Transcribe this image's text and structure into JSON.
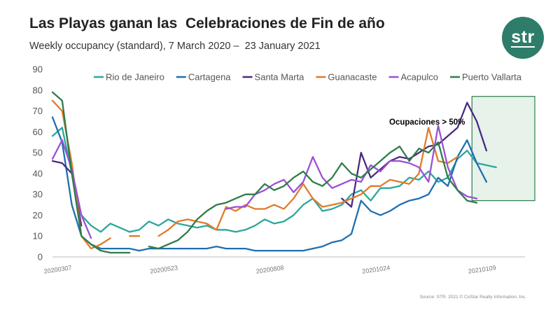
{
  "header": {
    "title": "Las Playas ganan las  Celebraciones de Fin de año",
    "subtitle": "Weekly occupancy (standard), 7 March 2020 –  23 January 2021",
    "logo_text": "str"
  },
  "footer": {
    "source": "Source: STR. 2021 © CoStar Realty Information, Inc."
  },
  "colors": {
    "Rio de Janeiro": "#2aa89a",
    "Cartagena": "#1f6fb0",
    "Santa Marta": "#4b2a82",
    "Guanacaste": "#e07b2a",
    "Acapulco": "#9b4fd6",
    "Puerto Vallarta": "#2e7d4a",
    "highlight_fill": "#e6f2ea",
    "highlight_stroke": "#2e7d4a",
    "logo": "#2e7d6b"
  },
  "chart_data": {
    "type": "line",
    "title": "Las Playas ganan las  Celebraciones de Fin de año",
    "xlabel": "",
    "ylabel": "",
    "ylim": [
      0,
      90
    ],
    "yticks": [
      0,
      10,
      20,
      30,
      40,
      50,
      60,
      70,
      80,
      90
    ],
    "grid": false,
    "legend_position": "top",
    "x_tick_labels": [
      "20200307",
      "20200523",
      "20200808",
      "20201024",
      "20210109"
    ],
    "x_tick_positions": [
      1,
      12,
      23,
      34,
      45
    ],
    "x": [
      1,
      2,
      3,
      4,
      5,
      6,
      7,
      8,
      9,
      10,
      11,
      12,
      13,
      14,
      15,
      16,
      17,
      18,
      19,
      20,
      21,
      22,
      23,
      24,
      25,
      26,
      27,
      28,
      29,
      30,
      31,
      32,
      33,
      34,
      35,
      36,
      37,
      38,
      39,
      40,
      41,
      42,
      43,
      44,
      45,
      46,
      47,
      48,
      49,
      50
    ],
    "annotation": {
      "text": "Ocupaciones >  50%",
      "x_start": 44.5,
      "x_end": 50,
      "y_low": 27,
      "y_high": 77
    },
    "series": [
      {
        "name": "Rio de Janeiro",
        "values": [
          58,
          62,
          40,
          20,
          15,
          12,
          16,
          14,
          12,
          13,
          17,
          15,
          18,
          16,
          15,
          14,
          15,
          13,
          13,
          12,
          13,
          15,
          18,
          16,
          17,
          20,
          25,
          28,
          22,
          23,
          25,
          30,
          32,
          27,
          33,
          33,
          34,
          38,
          37,
          41,
          36,
          38,
          47,
          51,
          45,
          44,
          43,
          null,
          null,
          null
        ]
      },
      {
        "name": "Cartagena",
        "values": [
          67,
          55,
          25,
          10,
          6,
          4,
          4,
          4,
          4,
          3,
          4,
          4,
          4,
          4,
          4,
          4,
          4,
          5,
          4,
          4,
          4,
          3,
          3,
          3,
          3,
          3,
          3,
          4,
          5,
          7,
          8,
          11,
          27,
          22,
          20,
          22,
          25,
          27,
          28,
          30,
          38,
          34,
          48,
          56,
          45,
          36,
          null,
          null,
          null,
          null
        ]
      },
      {
        "name": "Santa Marta",
        "values": [
          46,
          45,
          40,
          15,
          null,
          null,
          null,
          null,
          null,
          null,
          null,
          null,
          null,
          null,
          null,
          null,
          null,
          null,
          null,
          null,
          null,
          null,
          null,
          null,
          null,
          null,
          null,
          null,
          null,
          null,
          28,
          24,
          50,
          38,
          42,
          46,
          48,
          47,
          50,
          53,
          54,
          58,
          62,
          74,
          65,
          51,
          null,
          null,
          null,
          null
        ]
      },
      {
        "name": "Guanacaste",
        "values": [
          75,
          70,
          45,
          10,
          4,
          6,
          9,
          null,
          10,
          10,
          null,
          10,
          13,
          17,
          18,
          17,
          16,
          13,
          24,
          22,
          25,
          23,
          23,
          25,
          23,
          28,
          35,
          28,
          24,
          25,
          26,
          28,
          30,
          34,
          34,
          37,
          36,
          35,
          40,
          62,
          46,
          45,
          48,
          null,
          null,
          null,
          null,
          null,
          null,
          null
        ]
      },
      {
        "name": "Acapulco",
        "values": [
          47,
          56,
          42,
          20,
          9,
          null,
          null,
          null,
          null,
          null,
          null,
          null,
          null,
          null,
          null,
          null,
          null,
          null,
          23,
          24,
          24,
          30,
          32,
          35,
          37,
          31,
          36,
          48,
          38,
          33,
          35,
          37,
          36,
          44,
          41,
          46,
          46,
          45,
          43,
          36,
          63,
          43,
          32,
          29,
          28,
          null,
          null,
          null,
          null,
          null
        ]
      },
      {
        "name": "Puerto Vallarta",
        "values": [
          79,
          75,
          40,
          10,
          6,
          3,
          2,
          2,
          2,
          null,
          5,
          4,
          6,
          8,
          12,
          18,
          22,
          25,
          26,
          28,
          30,
          30,
          35,
          32,
          34,
          38,
          41,
          36,
          34,
          38,
          45,
          40,
          38,
          42,
          46,
          50,
          53,
          46,
          52,
          50,
          55,
          38,
          32,
          27,
          26,
          null,
          null,
          null,
          null,
          null
        ]
      }
    ]
  }
}
